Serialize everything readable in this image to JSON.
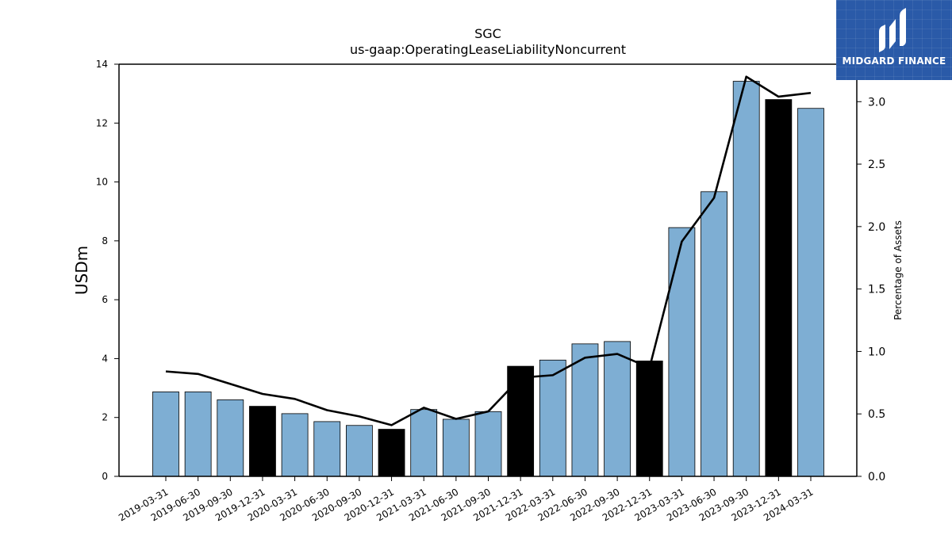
{
  "brand": {
    "name": "MIDGARD FINANCE",
    "color": "#2a5aa8",
    "icon": "midgard-logo-icon"
  },
  "chart_data": {
    "type": "bar",
    "title": "SGC",
    "subtitle": "us-gaap:OperatingLeaseLiabilityNoncurrent",
    "ylabel": "USDm",
    "y2label": "Percentage of Assets",
    "ylim": [
      0,
      14
    ],
    "y2lim": [
      0,
      3.3
    ],
    "yticks": [
      "0",
      "2",
      "4",
      "6",
      "8",
      "10",
      "12",
      "14"
    ],
    "y2ticks": [
      "0.0",
      "0.5",
      "1.0",
      "1.5",
      "2.0",
      "2.5",
      "3.0"
    ],
    "categories": [
      "2019-03-31",
      "2019-06-30",
      "2019-09-30",
      "2019-12-31",
      "2020-03-31",
      "2020-06-30",
      "2020-09-30",
      "2020-12-31",
      "2021-03-31",
      "2021-06-30",
      "2021-09-30",
      "2021-12-31",
      "2022-03-31",
      "2022-06-30",
      "2022-09-30",
      "2022-12-31",
      "2023-03-31",
      "2023-06-30",
      "2023-09-30",
      "2023-12-31",
      "2024-03-31"
    ],
    "series": [
      {
        "type": "bar",
        "axis": "left",
        "values": [
          2.87,
          2.87,
          2.6,
          2.38,
          2.13,
          1.86,
          1.73,
          1.6,
          2.27,
          1.94,
          2.2,
          3.74,
          3.95,
          4.5,
          4.58,
          3.92,
          8.45,
          9.67,
          13.42,
          12.8,
          12.5
        ],
        "colors": [
          "#7eaed3",
          "#7eaed3",
          "#7eaed3",
          "#000000",
          "#7eaed3",
          "#7eaed3",
          "#7eaed3",
          "#000000",
          "#7eaed3",
          "#7eaed3",
          "#7eaed3",
          "#000000",
          "#7eaed3",
          "#7eaed3",
          "#7eaed3",
          "#000000",
          "#7eaed3",
          "#7eaed3",
          "#7eaed3",
          "#000000",
          "#7eaed3"
        ]
      },
      {
        "type": "line",
        "axis": "right",
        "color": "#000000",
        "values": [
          0.84,
          0.82,
          0.74,
          0.66,
          0.62,
          0.53,
          0.48,
          0.41,
          0.55,
          0.46,
          0.52,
          0.79,
          0.81,
          0.95,
          0.98,
          0.87,
          1.88,
          2.23,
          3.2,
          3.04,
          3.07
        ]
      }
    ],
    "grid": false,
    "legend": "none"
  }
}
